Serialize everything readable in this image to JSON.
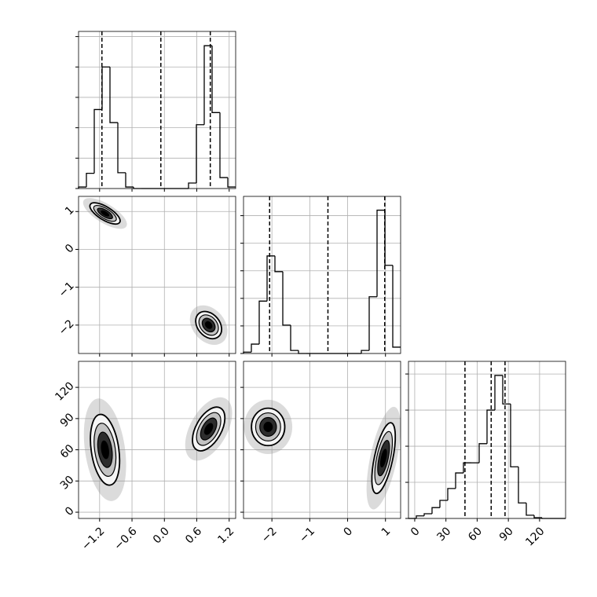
{
  "chart_data": {
    "type": "corner",
    "color": "#000000",
    "grid": true,
    "levels": [
      0.5,
      1,
      1.5,
      2
    ],
    "params": [
      {
        "lim": [
          -1.59,
          1.32
        ],
        "ticks": [
          {
            "value": -1.2,
            "label": "−1.2"
          },
          {
            "value": -0.6,
            "label": "−0.6"
          },
          {
            "value": 0.0,
            "label": "0.0"
          },
          0.6,
          1.2
        ]
      },
      {
        "lim": [
          -2.75,
          1.4
        ],
        "ticks": [
          {
            "value": -2,
            "label": "−2"
          },
          {
            "value": -1,
            "label": "−1"
          },
          0,
          1
        ]
      },
      {
        "lim": [
          -6,
          145
        ],
        "ticks": [
          0,
          30,
          60,
          90,
          120
        ]
      }
    ],
    "histograms": [
      {
        "bins": [
          -1.59,
          -1.4445,
          -1.299,
          -1.1535,
          -1.008,
          -0.8625,
          -0.717,
          -0.5715,
          -0.426,
          -0.2805,
          -0.135,
          0.0105,
          0.156,
          0.3015,
          0.447,
          0.5925,
          0.738,
          0.8835,
          1.029,
          1.1745,
          1.32
        ],
        "counts": [
          0.05,
          0.5,
          2.6,
          4.0,
          2.17,
          0.52,
          0.05,
          0,
          0,
          0,
          0,
          0,
          0,
          0,
          0.18,
          2.1,
          4.7,
          2.5,
          0.36,
          0.05
        ],
        "ylim": [
          0,
          5.17
        ],
        "yticks": [
          0,
          1,
          2,
          3,
          4,
          5
        ],
        "quantiles": [
          -1.157,
          -0.066,
          0.85
        ]
      },
      {
        "bins": [
          -2.75,
          -2.5425,
          -2.335,
          -2.1275,
          -1.92,
          -1.7125,
          -1.505,
          -1.2975,
          -1.09,
          -0.8825,
          -0.675,
          -0.4675,
          -0.26,
          -0.0525,
          0.155,
          0.3625,
          0.57,
          0.7775,
          0.985,
          1.1925,
          1.4
        ],
        "counts": [
          0.05,
          0.34,
          1.9,
          3.54,
          2.97,
          1.03,
          0.11,
          0,
          0,
          0,
          0,
          0,
          0,
          0,
          0,
          0.11,
          2.06,
          5.2,
          3.2,
          0.23
        ],
        "ylim": [
          0,
          5.7
        ],
        "yticks": [
          0,
          1,
          2,
          3,
          4,
          5
        ],
        "quantiles": [
          -2.06,
          -0.52,
          0.98
        ]
      },
      {
        "bins": [
          -6,
          1.55,
          9.1,
          16.65,
          24.2,
          31.75,
          39.3,
          46.85,
          54.4,
          61.95,
          69.5,
          77.05,
          84.6,
          92.15,
          99.7,
          107.25,
          114.8,
          122.35,
          129.9,
          137.45,
          145
        ],
        "counts": [
          0,
          0.07,
          0.13,
          0.3,
          0.5,
          0.83,
          1.26,
          1.54,
          1.54,
          2.07,
          3.0,
          3.96,
          3.17,
          1.43,
          0.43,
          0.09,
          0.02,
          0,
          0,
          0
        ],
        "ylim": [
          0,
          4.35
        ],
        "yticks": [
          0,
          1,
          2,
          3,
          4
        ],
        "quantiles": [
          48.3,
          73.5,
          86.8
        ]
      }
    ],
    "panels": [
      {
        "x_param": 0,
        "y_param": 1,
        "clusters": [
          {
            "x": -1.1,
            "y": 0.95,
            "sx": 0.14,
            "sy": 0.14,
            "rho": -0.7
          },
          {
            "x": 0.82,
            "y": -2.0,
            "sx": 0.12,
            "sy": 0.18,
            "rho": -0.3
          }
        ]
      },
      {
        "x_param": 0,
        "y_param": 2,
        "clusters": [
          {
            "x": -1.1,
            "y": 60,
            "sx": 0.135,
            "sy": 17,
            "rho": -0.3
          },
          {
            "x": 0.82,
            "y": 80,
            "sx": 0.15,
            "sy": 10.5,
            "rho": 0.5
          }
        ]
      },
      {
        "x_param": 1,
        "y_param": 2,
        "clusters": [
          {
            "x": -2.1,
            "y": 82,
            "sx": 0.22,
            "sy": 9,
            "rho": 0
          },
          {
            "x": 0.95,
            "y": 52,
            "sx": 0.155,
            "sy": 17,
            "rho": 0.6
          }
        ]
      }
    ]
  }
}
